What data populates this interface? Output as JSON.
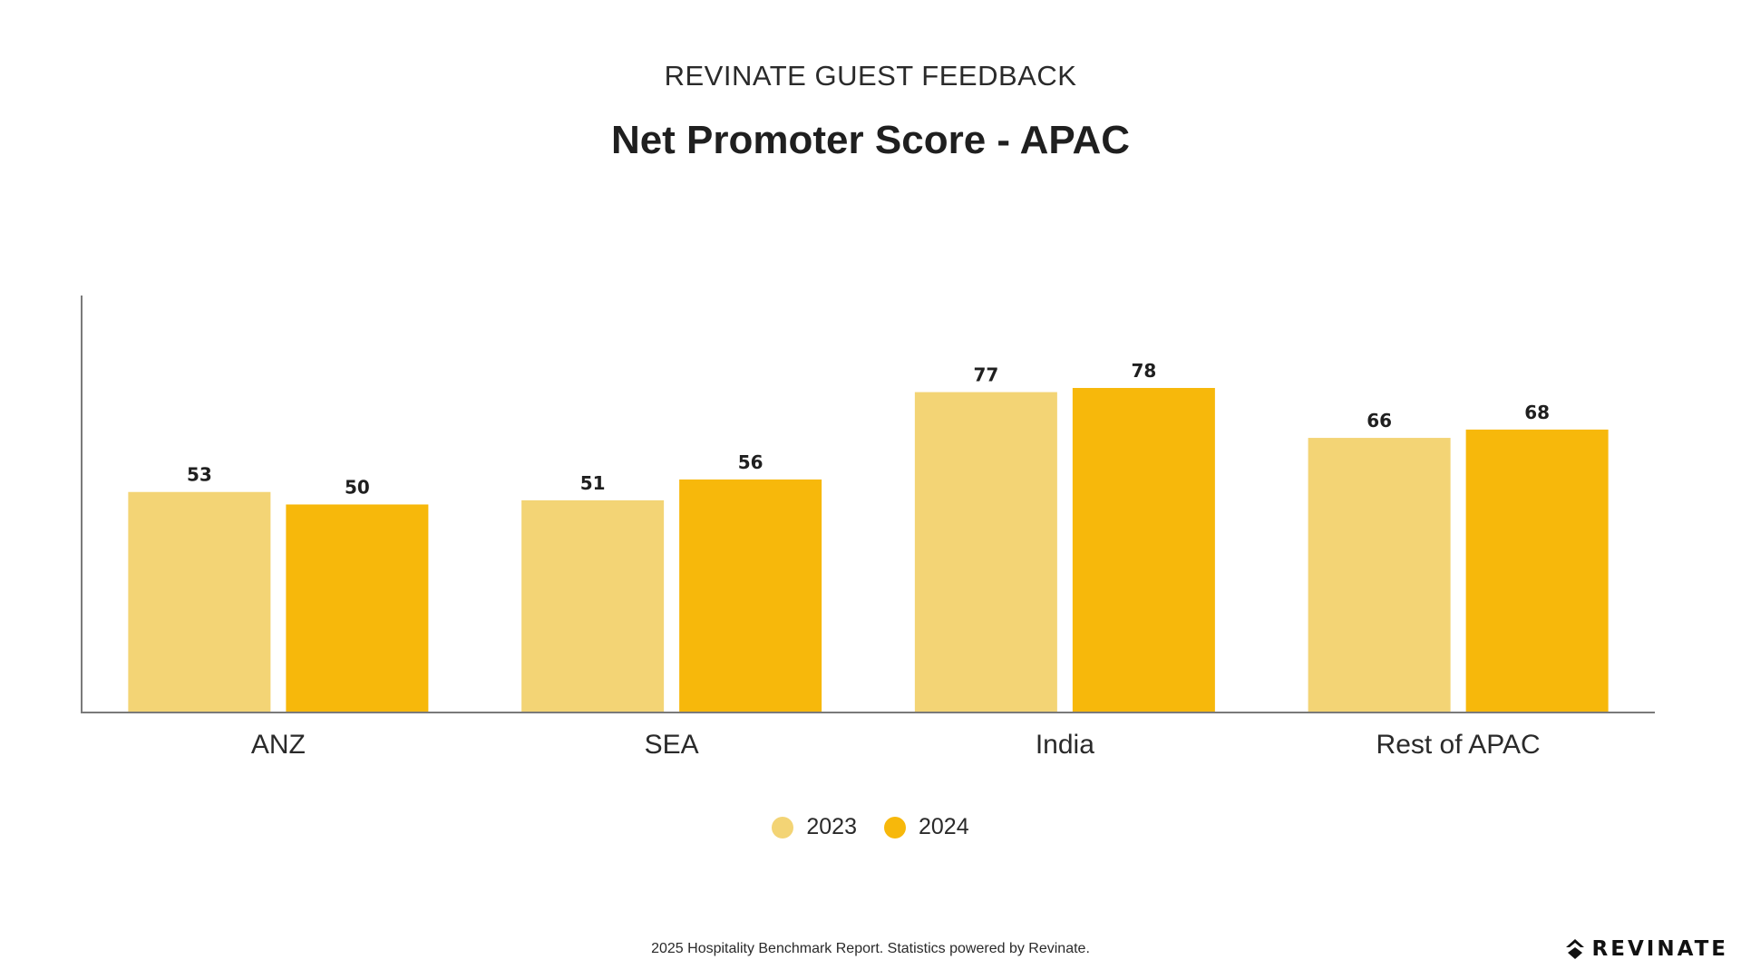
{
  "header": {
    "supertitle": "REVINATE GUEST FEEDBACK",
    "title": "Net Promoter Score - APAC"
  },
  "chart_data": {
    "type": "bar",
    "title": "Net Promoter Score - APAC",
    "categories": [
      "ANZ",
      "SEA",
      "India",
      "Rest of APAC"
    ],
    "series": [
      {
        "name": "2023",
        "values": [
          53,
          51,
          77,
          66
        ],
        "color": "#F3D475"
      },
      {
        "name": "2024",
        "values": [
          50,
          56,
          78,
          68
        ],
        "color": "#F7B80B"
      }
    ],
    "xlabel": "",
    "ylabel": "",
    "ylim": [
      0,
      100
    ],
    "grid": false,
    "legend_position": "bottom-center",
    "data_labels": true
  },
  "legend": {
    "items": [
      {
        "label": "2023",
        "color": "#F3D475"
      },
      {
        "label": "2024",
        "color": "#F7B80B"
      }
    ]
  },
  "footer": {
    "text": "2025 Hospitality Benchmark Report. Statistics powered by Revinate."
  },
  "brand": {
    "name": "REVINATE",
    "icon": "revinate-logo-icon"
  }
}
